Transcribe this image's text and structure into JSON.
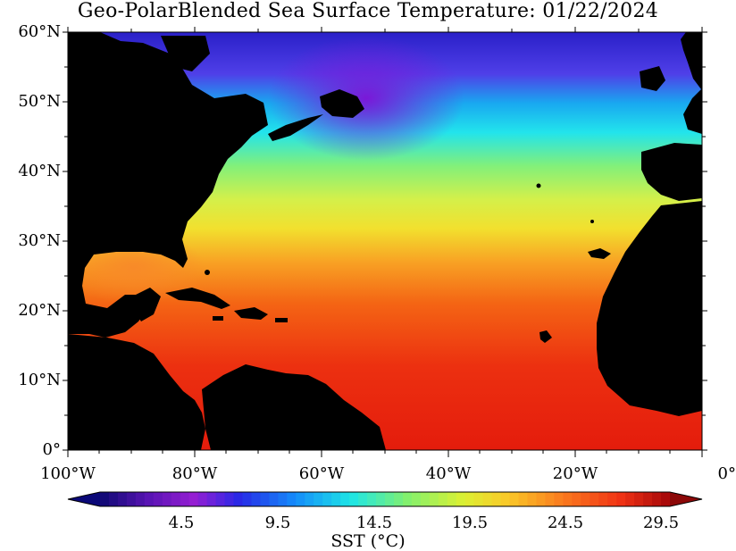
{
  "title": "Geo-PolarBlended Sea Surface Temperature: 01/22/2024",
  "lat_labels": [
    "60°N",
    "50°N",
    "40°N",
    "30°N",
    "20°N",
    "10°N",
    "0°"
  ],
  "lon_labels": [
    "100°W",
    "80°W",
    "60°W",
    "40°W",
    "20°W",
    "0°"
  ],
  "colorbar": {
    "tick_labels": [
      "4.5",
      "9.5",
      "14.5",
      "19.5",
      "24.5",
      "29.5"
    ],
    "label": "SST (°C)"
  },
  "colors": {
    "land": "#000000",
    "background": "#ffffff"
  }
}
